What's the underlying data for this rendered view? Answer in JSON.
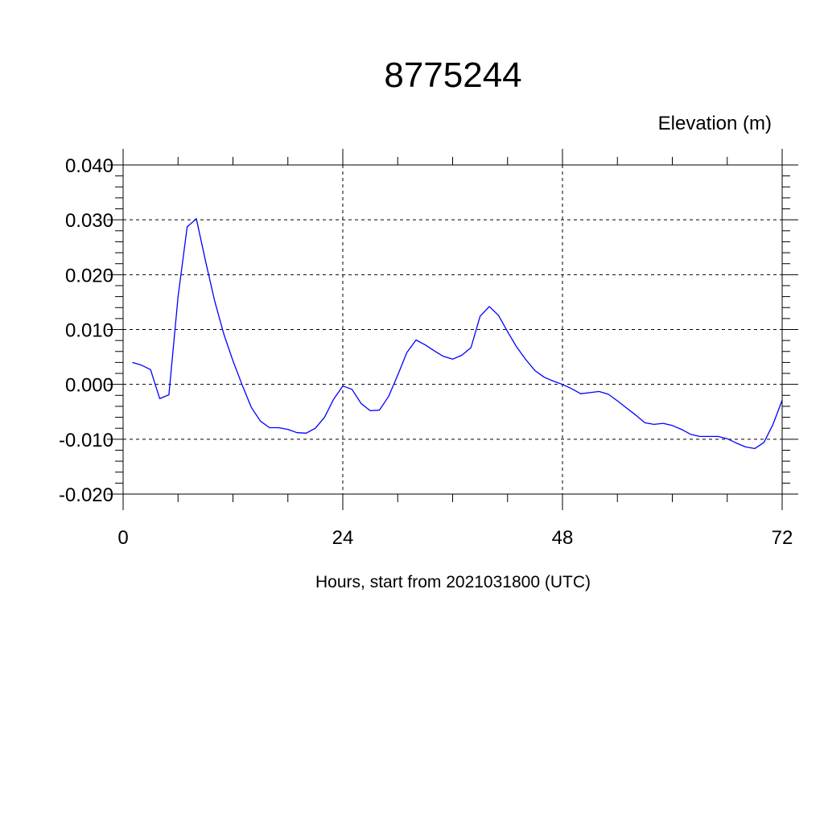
{
  "chart_data": {
    "type": "line",
    "title": "8775244",
    "ylabel": "Elevation (m)",
    "xlabel": "Hours, start from 2021031800 (UTC)",
    "xlim": [
      0,
      72
    ],
    "ylim": [
      -0.02,
      0.04
    ],
    "x_ticks": [
      0,
      24,
      48,
      72
    ],
    "x_tick_labels": [
      "0",
      "24",
      "48",
      "72"
    ],
    "y_ticks": [
      -0.02,
      -0.01,
      0.0,
      0.01,
      0.02,
      0.03,
      0.04
    ],
    "y_tick_labels": [
      "-0.020",
      "-0.010",
      "0.000",
      "0.010",
      "0.020",
      "0.030",
      "0.040"
    ],
    "grid": true,
    "color": "#0000ff",
    "series": [
      {
        "x": [
          1,
          2,
          3,
          4,
          5,
          6,
          7,
          8,
          9,
          10,
          11,
          12,
          13,
          14,
          15,
          16,
          17,
          18,
          19,
          20,
          21,
          22,
          23,
          24,
          25,
          26,
          27,
          28,
          29,
          30,
          31,
          32,
          33,
          34,
          35,
          36,
          37,
          38,
          39,
          40,
          41,
          42,
          43,
          44,
          45,
          46,
          47,
          48,
          49,
          50,
          51,
          52,
          53,
          54,
          55,
          56,
          57,
          58,
          59,
          60,
          61,
          62,
          63,
          64,
          65,
          66,
          67,
          68,
          69,
          70,
          71,
          72
        ],
        "values": [
          0.004,
          0.0035,
          0.0027,
          -0.0026,
          -0.0019,
          0.016,
          0.0287,
          0.0302,
          0.0225,
          0.0152,
          0.0092,
          0.0043,
          -0.0001,
          -0.0042,
          -0.0067,
          -0.0079,
          -0.0079,
          -0.0082,
          -0.0088,
          -0.0089,
          -0.008,
          -0.006,
          -0.0027,
          -0.0003,
          -0.0009,
          -0.0035,
          -0.0048,
          -0.0047,
          -0.0022,
          0.0017,
          0.0058,
          0.0081,
          0.0072,
          0.0061,
          0.0051,
          0.0046,
          0.0053,
          0.0067,
          0.0124,
          0.0142,
          0.0126,
          0.0096,
          0.0068,
          0.0045,
          0.0025,
          0.0013,
          0.0006,
          0.0,
          -0.0008,
          -0.0017,
          -0.0015,
          -0.0013,
          -0.0018,
          -0.003,
          -0.0043,
          -0.0056,
          -0.007,
          -0.0073,
          -0.0071,
          -0.0075,
          -0.0082,
          -0.0091,
          -0.0095,
          -0.0095,
          -0.0095,
          -0.0099,
          -0.0107,
          -0.0114,
          -0.0117,
          -0.0106,
          -0.0073,
          -0.0029
        ]
      }
    ]
  }
}
